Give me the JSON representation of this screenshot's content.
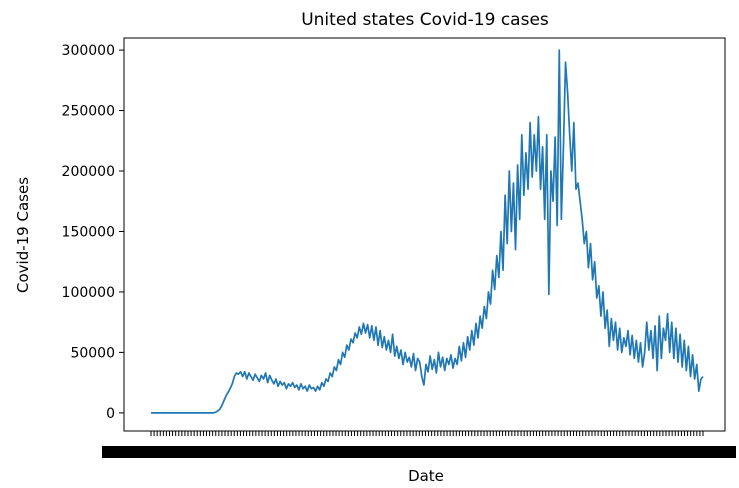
{
  "chart_data": {
    "type": "line",
    "title": "United states Covid-19 cases",
    "xlabel": "Date",
    "ylabel": "Covid-19 Cases",
    "ylim": [
      -15000,
      310000
    ],
    "yticks": [
      0,
      50000,
      100000,
      150000,
      200000,
      250000,
      300000
    ],
    "yticklabels": [
      "0",
      "50000",
      "100000",
      "150000",
      "200000",
      "250000",
      "300000"
    ],
    "xtick_labels_note": "",
    "grid": false,
    "legend": "none",
    "line_color": "#1f77b4",
    "series": [
      {
        "values": [
          0,
          0,
          0,
          0,
          0,
          0,
          0,
          0,
          0,
          0,
          0,
          0,
          0,
          0,
          0,
          0,
          0,
          0,
          0,
          0,
          0,
          0,
          0,
          0,
          0,
          0,
          0,
          0,
          0,
          0,
          0,
          500,
          1500,
          3000,
          6000,
          10000,
          14000,
          17000,
          20000,
          24000,
          30000,
          33000,
          32000,
          34000,
          30000,
          34000,
          28000,
          33000,
          30000,
          27000,
          32000,
          29000,
          26000,
          31000,
          28000,
          33000,
          25000,
          31000,
          27000,
          24000,
          28000,
          22000,
          26000,
          23000,
          25000,
          20000,
          24000,
          22000,
          25000,
          21000,
          23000,
          19000,
          24000,
          20000,
          22000,
          18000,
          23000,
          20000,
          21000,
          18000,
          22000,
          19000,
          25000,
          22000,
          28000,
          26000,
          33000,
          30000,
          38000,
          35000,
          44000,
          40000,
          50000,
          46000,
          56000,
          52000,
          61000,
          58000,
          66000,
          62000,
          71000,
          65000,
          74000,
          66000,
          73000,
          62000,
          72000,
          60000,
          71000,
          56000,
          68000,
          54000,
          63000,
          52000,
          60000,
          50000,
          65000,
          47000,
          55000,
          45000,
          52000,
          40000,
          50000,
          42000,
          46000,
          38000,
          49000,
          35000,
          45000,
          42000,
          30000,
          23000,
          40000,
          34000,
          47000,
          36000,
          44000,
          33000,
          50000,
          38000,
          46000,
          35000,
          45000,
          40000,
          48000,
          37000,
          45000,
          40000,
          55000,
          43000,
          58000,
          46000,
          63000,
          52000,
          68000,
          56000,
          74000,
          62000,
          80000,
          70000,
          88000,
          78000,
          100000,
          90000,
          118000,
          102000,
          130000,
          112000,
          150000,
          118000,
          180000,
          140000,
          200000,
          150000,
          190000,
          135000,
          205000,
          160000,
          230000,
          180000,
          215000,
          185000,
          240000,
          195000,
          230000,
          200000,
          245000,
          185000,
          220000,
          160000,
          230000,
          98000,
          200000,
          175000,
          228000,
          155000,
          300000,
          160000,
          220000,
          290000,
          265000,
          230000,
          200000,
          240000,
          185000,
          190000,
          175000,
          160000,
          140000,
          150000,
          120000,
          140000,
          110000,
          125000,
          95000,
          105000,
          80000,
          100000,
          70000,
          85000,
          55000,
          78000,
          60000,
          75000,
          52000,
          70000,
          50000,
          62000,
          55000,
          68000,
          48000,
          64000,
          45000,
          60000,
          42000,
          58000,
          38000,
          50000,
          75000,
          52000,
          68000,
          45000,
          72000,
          35000,
          80000,
          45000,
          70000,
          60000,
          82000,
          50000,
          75000,
          45000,
          70000,
          42000,
          65000,
          38000,
          60000,
          35000,
          55000,
          30000,
          48000,
          28000,
          40000,
          18000,
          28000,
          30000
        ]
      }
    ]
  }
}
